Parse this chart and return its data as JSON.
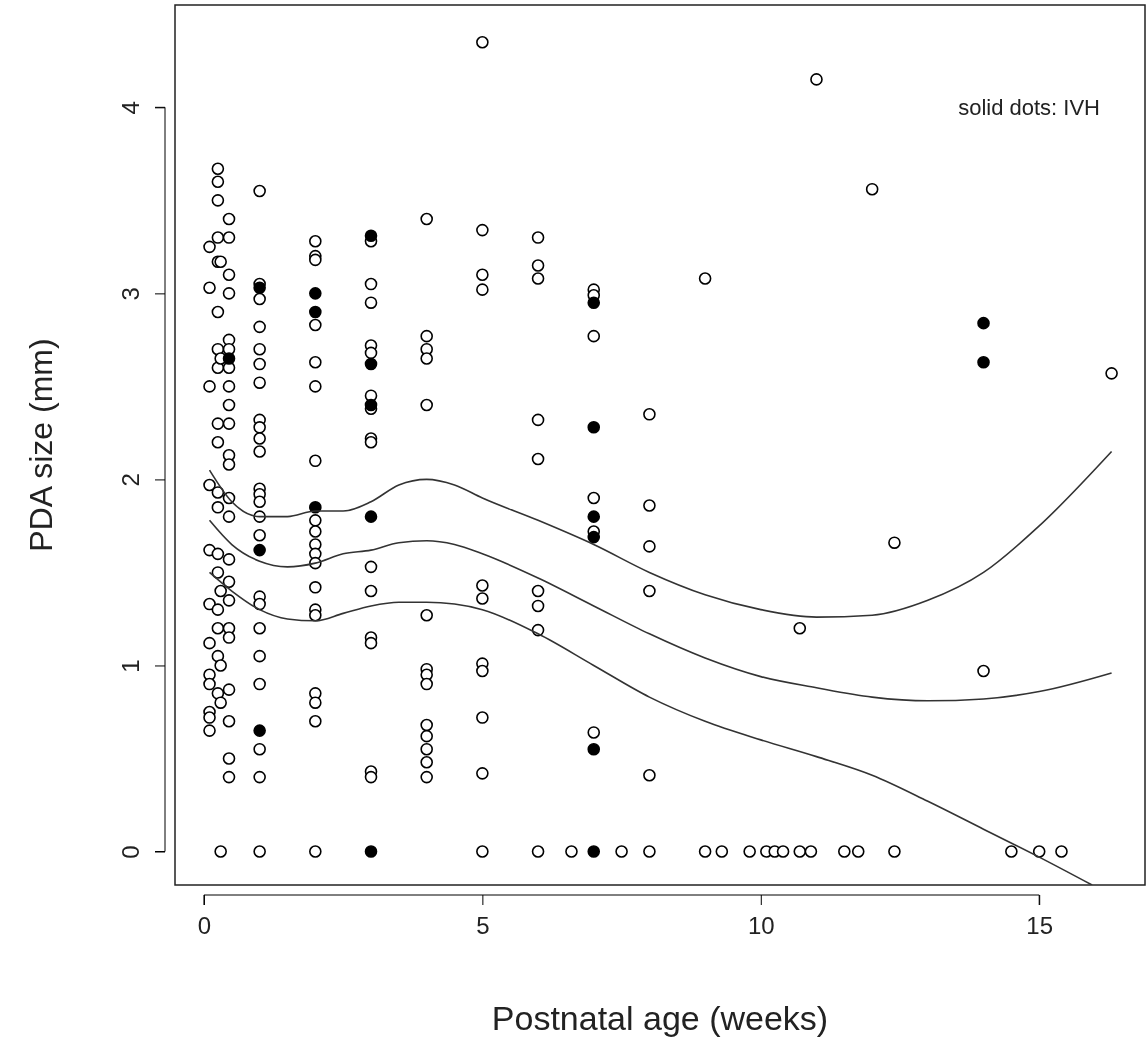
{
  "chart_data": {
    "type": "scatter",
    "xlabel": "Postnatal age (weeks)",
    "ylabel": "PDA size (mm)",
    "xlim": [
      -0.52,
      16.9
    ],
    "ylim": [
      -0.18,
      4.55
    ],
    "xticks": [
      0,
      5,
      10,
      15
    ],
    "yticks": [
      0,
      1,
      2,
      3,
      4
    ],
    "grid": false,
    "annotations": [
      "solid dots: IVH"
    ],
    "series": [
      {
        "marker": "circle",
        "color": "#ffffff",
        "x": [
          0.1,
          0.1,
          0.1,
          0.1,
          0.1,
          0.1,
          0.1,
          0.1,
          0.1,
          0.1,
          0.1,
          0.1,
          0.25,
          0.25,
          0.25,
          0.25,
          0.25,
          0.25,
          0.25,
          0.25,
          0.25,
          0.25,
          0.25,
          0.25,
          0.25,
          0.25,
          0.25,
          0.25,
          0.25,
          0.25,
          0.3,
          0.3,
          0.3,
          0.3,
          0.3,
          0.3,
          0.45,
          0.45,
          0.45,
          0.45,
          0.45,
          0.45,
          0.45,
          0.45,
          0.45,
          0.45,
          0.45,
          0.45,
          0.45,
          0.45,
          0.45,
          0.45,
          0.45,
          0.45,
          0.45,
          0.45,
          0.45,
          0.45,
          0.45,
          1,
          1,
          1,
          1,
          1,
          1,
          1,
          1,
          1,
          1,
          1,
          1,
          1,
          1,
          1,
          1,
          1,
          1,
          1,
          1,
          1,
          1,
          1,
          1,
          2,
          2,
          2,
          2,
          2,
          2,
          2,
          2,
          2,
          2,
          2,
          2,
          2,
          2,
          2,
          2,
          2,
          2,
          2,
          3,
          3,
          3,
          3,
          3,
          3,
          3,
          3,
          3,
          3,
          3,
          3,
          3,
          3,
          3,
          4,
          4,
          4,
          4,
          4,
          4,
          4,
          4,
          4,
          4,
          4,
          4,
          4,
          4,
          5,
          5,
          5,
          5,
          5,
          5,
          5,
          5,
          5,
          5,
          5,
          6,
          6,
          6,
          6,
          6,
          6,
          6,
          6,
          6,
          6.6,
          7,
          7,
          7,
          7,
          7,
          7,
          7.5,
          8,
          8,
          8,
          8,
          8,
          8,
          9,
          9,
          9.3,
          9.8,
          10.1,
          10.25,
          10.4,
          10.7,
          10.7,
          10.9,
          11,
          11.5,
          11.75,
          12,
          12.4,
          12.4,
          14,
          14.5,
          15,
          15.4,
          16.3
        ],
        "values": [
          3.25,
          3.03,
          2.5,
          1.97,
          1.62,
          1.33,
          1.12,
          0.95,
          0.9,
          0.75,
          0.65,
          0.72,
          3.67,
          3.6,
          3.5,
          3.3,
          3.17,
          2.9,
          2.7,
          2.6,
          2.3,
          2.2,
          1.93,
          1.85,
          1.6,
          1.5,
          1.3,
          1.2,
          1.05,
          0.85,
          3.17,
          2.65,
          1.4,
          1.0,
          0.8,
          0,
          3.4,
          3.3,
          3.1,
          3.0,
          2.75,
          2.7,
          2.6,
          2.5,
          2.4,
          2.3,
          2.13,
          2.08,
          1.9,
          1.8,
          1.57,
          1.45,
          1.35,
          1.2,
          1.15,
          0.87,
          0.7,
          0.5,
          0.4,
          3.55,
          3.05,
          2.97,
          2.82,
          2.7,
          2.62,
          2.52,
          2.32,
          2.28,
          2.22,
          2.15,
          1.95,
          1.92,
          1.88,
          1.8,
          1.7,
          1.37,
          1.33,
          1.2,
          1.05,
          0.9,
          0.55,
          0.4,
          0,
          3.28,
          3.2,
          3.18,
          2.83,
          2.63,
          2.5,
          2.1,
          1.78,
          1.72,
          1.65,
          1.6,
          1.55,
          1.42,
          1.3,
          1.27,
          0.85,
          0.8,
          0.7,
          0,
          3.28,
          3.05,
          2.95,
          2.72,
          2.68,
          2.45,
          2.38,
          2.22,
          2.2,
          1.53,
          1.4,
          1.15,
          1.12,
          0.43,
          0.4,
          3.4,
          2.77,
          2.7,
          2.65,
          2.4,
          1.27,
          0.98,
          0.95,
          0.9,
          0.68,
          0.62,
          0.55,
          0.48,
          0.4,
          4.35,
          3.34,
          3.1,
          3.02,
          1.43,
          1.36,
          1.01,
          0.97,
          0.72,
          0.42,
          0,
          3.3,
          3.15,
          3.08,
          2.32,
          2.11,
          1.4,
          1.32,
          1.19,
          0,
          0,
          3.02,
          2.99,
          2.77,
          1.9,
          1.72,
          0.64,
          0,
          2.35,
          1.86,
          1.64,
          1.4,
          0.41,
          0,
          3.08,
          0,
          0,
          0,
          0,
          0,
          0,
          1.2,
          0,
          0,
          4.15,
          0,
          0,
          3.56,
          1.66,
          0,
          0.97,
          0,
          0,
          0,
          2.57
        ]
      },
      {
        "marker": "circle",
        "color": "#000000",
        "x": [
          0.45,
          1,
          1,
          1,
          2,
          2,
          2,
          3,
          3,
          3,
          3,
          3,
          7,
          7,
          7,
          7,
          7,
          7,
          14,
          14
        ],
        "values": [
          2.65,
          3.03,
          1.62,
          0.65,
          3.0,
          2.9,
          1.85,
          3.31,
          2.62,
          2.4,
          1.8,
          0,
          2.95,
          2.28,
          1.8,
          1.69,
          0.55,
          0,
          2.84,
          2.63
        ]
      },
      {
        "type": "line",
        "color": "#333333",
        "x": [
          0.1,
          0.5,
          1,
          1.5,
          2,
          2.5,
          3,
          3.5,
          4,
          4.5,
          5,
          6,
          7,
          8,
          9,
          10,
          11,
          12,
          13,
          14,
          15,
          16.3
        ],
        "values": [
          2.05,
          1.88,
          1.8,
          1.8,
          1.83,
          1.83,
          1.88,
          1.97,
          2.0,
          1.97,
          1.9,
          1.78,
          1.65,
          1.5,
          1.38,
          1.3,
          1.26,
          1.27,
          1.35,
          1.5,
          1.75,
          2.15
        ]
      },
      {
        "type": "line",
        "color": "#333333",
        "x": [
          0.1,
          0.5,
          1,
          1.5,
          2,
          2.5,
          3,
          3.5,
          4,
          4.5,
          5,
          6,
          7,
          8,
          9,
          10,
          11,
          12,
          13,
          14,
          15,
          16.3
        ],
        "values": [
          1.78,
          1.65,
          1.56,
          1.53,
          1.55,
          1.6,
          1.62,
          1.66,
          1.67,
          1.65,
          1.6,
          1.47,
          1.32,
          1.17,
          1.04,
          0.94,
          0.88,
          0.83,
          0.81,
          0.82,
          0.86,
          0.96
        ]
      },
      {
        "type": "line",
        "color": "#333333",
        "x": [
          0.1,
          0.5,
          1,
          1.5,
          2,
          2.5,
          3,
          3.5,
          4,
          4.5,
          5,
          6,
          7,
          8,
          9,
          10,
          11,
          12,
          13,
          14,
          15,
          15.95
        ],
        "values": [
          1.5,
          1.4,
          1.3,
          1.25,
          1.24,
          1.28,
          1.32,
          1.34,
          1.34,
          1.33,
          1.3,
          1.17,
          1.0,
          0.83,
          0.7,
          0.6,
          0.51,
          0.41,
          0.27,
          0.12,
          -0.03,
          -0.18
        ]
      }
    ]
  }
}
